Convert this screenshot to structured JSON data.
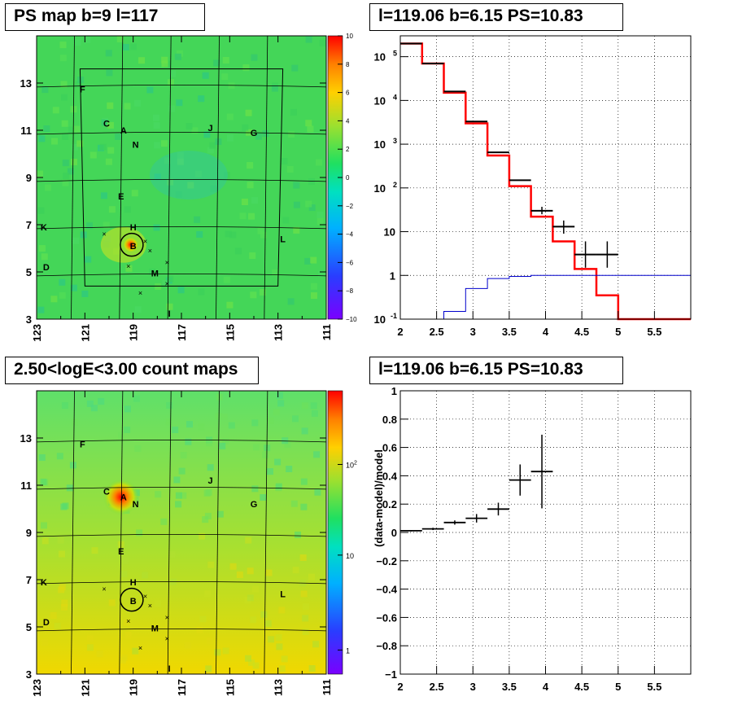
{
  "panels": {
    "tl": {
      "title": "PS map b=9 l=117"
    },
    "tr": {
      "title": "l=119.06 b=6.15 PS=10.83"
    },
    "bl": {
      "title": "2.50<logE<3.00 count maps"
    },
    "br": {
      "title": "l=119.06 b=6.15 PS=10.83"
    }
  },
  "chart_data": [
    {
      "type": "heatmap",
      "title": "PS map b=9 l=117",
      "x_ticks": [
        "123",
        "121",
        "119",
        "117",
        "115",
        "113",
        "111"
      ],
      "y_ticks": [
        "3",
        "5",
        "7",
        "9",
        "11",
        "13"
      ],
      "xlim": [
        123,
        111
      ],
      "ylim": [
        3,
        15
      ],
      "colorbar": {
        "min": -10,
        "max": 10,
        "ticks": [
          "10",
          "8",
          "6",
          "4",
          "2",
          "0",
          "−2",
          "−4",
          "−6",
          "−8",
          "−10"
        ]
      },
      "sources": [
        {
          "label": "F",
          "l": 121.1,
          "b": 12.75
        },
        {
          "label": "C",
          "l": 120.1,
          "b": 11.3
        },
        {
          "label": "A",
          "l": 119.4,
          "b": 11.0
        },
        {
          "label": "N",
          "l": 118.9,
          "b": 10.4
        },
        {
          "label": "J",
          "l": 115.8,
          "b": 11.1
        },
        {
          "label": "G",
          "l": 114.0,
          "b": 10.9
        },
        {
          "label": "E",
          "l": 119.5,
          "b": 8.2
        },
        {
          "label": "K",
          "l": 122.7,
          "b": 6.9
        },
        {
          "label": "H",
          "l": 119.0,
          "b": 6.9
        },
        {
          "label": "B",
          "l": 119.0,
          "b": 6.1
        },
        {
          "label": "L",
          "l": 112.8,
          "b": 6.4
        },
        {
          "label": "D",
          "l": 122.6,
          "b": 5.2
        },
        {
          "label": "M",
          "l": 118.1,
          "b": 4.95
        },
        {
          "label": "I",
          "l": 117.5,
          "b": 3.25
        }
      ],
      "crosses": [
        [
          120.2,
          6.6
        ],
        [
          118.5,
          6.3
        ],
        [
          118.3,
          5.9
        ],
        [
          119.2,
          5.25
        ],
        [
          117.6,
          5.4
        ],
        [
          117.6,
          4.5
        ],
        [
          118.7,
          4.1
        ]
      ],
      "circle": {
        "l": 119.06,
        "b": 6.15
      }
    },
    {
      "type": "line",
      "title": "l=119.06 b=6.15 PS=10.83",
      "x_ticks": [
        "2",
        "2.5",
        "3",
        "3.5",
        "4",
        "4.5",
        "5",
        "5.5"
      ],
      "y_ticks": [
        "10^-1",
        "1",
        "10",
        "10^2",
        "10^3",
        "10^4",
        "10^5"
      ],
      "xlim": [
        2,
        6
      ],
      "ylim": [
        0.1,
        300000
      ],
      "y_scale": "log",
      "series": [
        {
          "color": "#ff0000",
          "bins": [
            2.0,
            2.3,
            2.6,
            2.9,
            3.2,
            3.5,
            3.8,
            4.1,
            4.4,
            4.7,
            5.0,
            6.0
          ],
          "values": [
            200000,
            70000,
            15000,
            3000,
            550,
            110,
            22,
            6,
            1.4,
            0.35,
            0.1
          ]
        },
        {
          "color": "#0000cc",
          "bins": [
            2.0,
            2.3,
            2.6,
            2.9,
            3.2,
            3.5,
            3.8,
            4.1,
            4.4,
            4.7,
            5.0,
            6.0
          ],
          "values": [
            0.001,
            0.005,
            0.15,
            0.5,
            0.85,
            0.95,
            1.0,
            1.0,
            1.0,
            1.0,
            1.0
          ]
        },
        {
          "color": "#000000",
          "points": [
            [
              2.15,
              200000
            ],
            [
              2.45,
              70000
            ],
            [
              2.75,
              16000
            ],
            [
              3.05,
              3300
            ],
            [
              3.35,
              650
            ],
            [
              3.65,
              150
            ],
            [
              3.95,
              30
            ],
            [
              4.25,
              13
            ],
            [
              4.55,
              3
            ],
            [
              4.85,
              3
            ]
          ],
          "yerr_low": [
            0,
            0,
            0,
            0,
            0,
            0,
            5,
            4,
            1.5,
            1.5
          ],
          "yerr_high": [
            0,
            0,
            0,
            0,
            0,
            0,
            7,
            5,
            3,
            3
          ]
        }
      ]
    },
    {
      "type": "heatmap",
      "title": "2.50<logE<3.00 count maps",
      "x_ticks": [
        "123",
        "121",
        "119",
        "117",
        "115",
        "113",
        "111"
      ],
      "y_ticks": [
        "3",
        "5",
        "7",
        "9",
        "11",
        "13"
      ],
      "xlim": [
        123,
        111
      ],
      "ylim": [
        3,
        15
      ],
      "colorbar": {
        "scale": "log",
        "ticks": [
          "10^2",
          "10",
          "1"
        ]
      },
      "bright_source": {
        "l": 119.5,
        "b": 10.5
      }
    },
    {
      "type": "scatter",
      "title": "l=119.06 b=6.15 PS=10.83",
      "ylabel": "(data-model)/model",
      "x_ticks": [
        "2",
        "2.5",
        "3",
        "3.5",
        "4",
        "4.5",
        "5",
        "5.5"
      ],
      "y_ticks": [
        "−1",
        "−0.8",
        "−0.6",
        "−0.4",
        "−0.2",
        "0",
        "0.2",
        "0.4",
        "0.6",
        "0.8",
        "1"
      ],
      "xlim": [
        2,
        6
      ],
      "ylim": [
        -1,
        1
      ],
      "points": [
        {
          "x": 2.15,
          "y": 0.012,
          "xerr": 0.15,
          "yerr": 0.005
        },
        {
          "x": 2.45,
          "y": 0.025,
          "xerr": 0.15,
          "yerr": 0.008
        },
        {
          "x": 2.75,
          "y": 0.07,
          "xerr": 0.15,
          "yerr": 0.015
        },
        {
          "x": 3.05,
          "y": 0.1,
          "xerr": 0.15,
          "yerr": 0.03
        },
        {
          "x": 3.35,
          "y": 0.165,
          "xerr": 0.15,
          "yerr": 0.045
        },
        {
          "x": 3.65,
          "y": 0.37,
          "xerr": 0.15,
          "yerr": 0.11
        },
        {
          "x": 3.95,
          "y": 0.43,
          "xerr": 0.15,
          "yerr": 0.26
        }
      ]
    }
  ]
}
